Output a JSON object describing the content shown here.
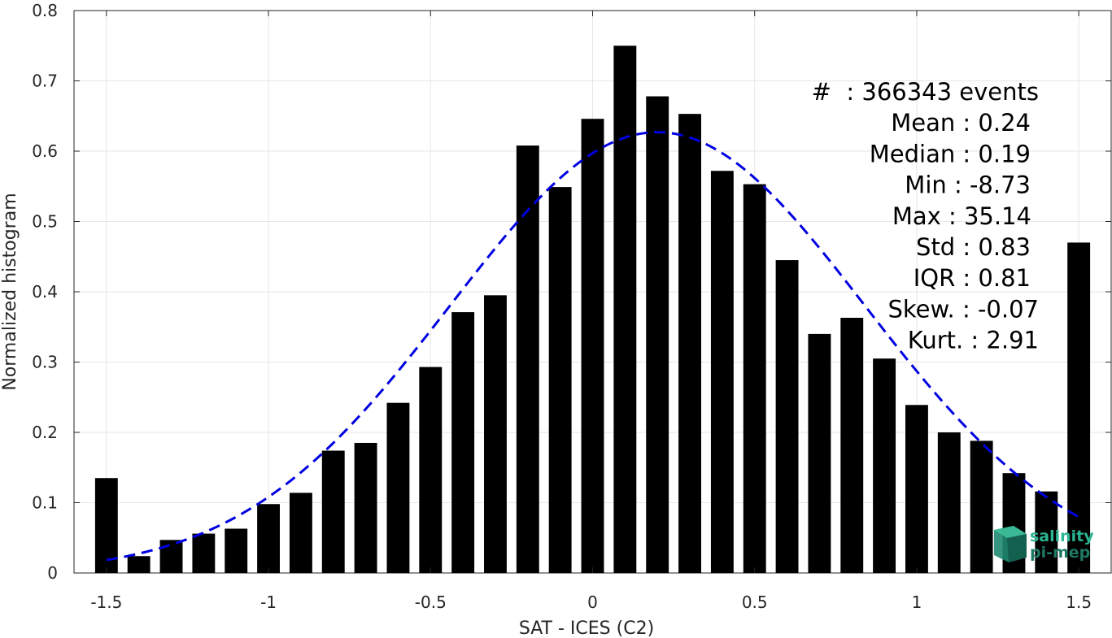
{
  "chart_data": {
    "type": "bar",
    "xlabel": "SAT - ICES (C2)",
    "ylabel": "Normalized histogram",
    "xlim": [
      -1.6,
      1.6
    ],
    "ylim": [
      0,
      0.8
    ],
    "x_ticks": [
      "-1.5",
      "-1",
      "-0.5",
      "0",
      "0.5",
      "1",
      "1.5"
    ],
    "x_tick_values": [
      -1.5,
      -1,
      -0.5,
      0,
      0.5,
      1,
      1.5
    ],
    "y_ticks": [
      "0",
      "0.1",
      "0.2",
      "0.3",
      "0.4",
      "0.5",
      "0.6",
      "0.7",
      "0.8"
    ],
    "y_tick_values": [
      0,
      0.1,
      0.2,
      0.3,
      0.4,
      0.5,
      0.6,
      0.7,
      0.8
    ],
    "grid": true,
    "bar_color": "#000000",
    "fit_color": "#0000e0",
    "bins": [
      {
        "x": -1.5,
        "value": 0.135
      },
      {
        "x": -1.4,
        "value": 0.024
      },
      {
        "x": -1.3,
        "value": 0.047
      },
      {
        "x": -1.2,
        "value": 0.056
      },
      {
        "x": -1.1,
        "value": 0.063
      },
      {
        "x": -1.0,
        "value": 0.098
      },
      {
        "x": -0.9,
        "value": 0.114
      },
      {
        "x": -0.8,
        "value": 0.174
      },
      {
        "x": -0.7,
        "value": 0.185
      },
      {
        "x": -0.6,
        "value": 0.242
      },
      {
        "x": -0.5,
        "value": 0.293
      },
      {
        "x": -0.4,
        "value": 0.371
      },
      {
        "x": -0.3,
        "value": 0.395
      },
      {
        "x": -0.2,
        "value": 0.608
      },
      {
        "x": -0.1,
        "value": 0.549
      },
      {
        "x": 0.0,
        "value": 0.646
      },
      {
        "x": 0.1,
        "value": 0.75
      },
      {
        "x": 0.2,
        "value": 0.678
      },
      {
        "x": 0.3,
        "value": 0.653
      },
      {
        "x": 0.4,
        "value": 0.572
      },
      {
        "x": 0.5,
        "value": 0.553
      },
      {
        "x": 0.6,
        "value": 0.445
      },
      {
        "x": 0.7,
        "value": 0.34
      },
      {
        "x": 0.8,
        "value": 0.363
      },
      {
        "x": 0.9,
        "value": 0.305
      },
      {
        "x": 1.0,
        "value": 0.239
      },
      {
        "x": 1.1,
        "value": 0.2
      },
      {
        "x": 1.2,
        "value": 0.188
      },
      {
        "x": 1.3,
        "value": 0.142
      },
      {
        "x": 1.4,
        "value": 0.116
      },
      {
        "x": 1.5,
        "value": 0.47
      }
    ],
    "bar_width": 0.07,
    "fit": {
      "type": "normal",
      "x_range": [
        -1.5,
        1.5
      ]
    },
    "stats": [
      {
        "label": "#  : 366343 events"
      },
      {
        "label": "Mean : 0.24"
      },
      {
        "label": "Median : 0.19"
      },
      {
        "label": "Min : -8.73"
      },
      {
        "label": "Max : 35.14"
      },
      {
        "label": "Std : 0.83"
      },
      {
        "label": "IQR : 0.81"
      },
      {
        "label": "Skew. : -0.07"
      },
      {
        "label": "Kurt. : 2.91"
      }
    ]
  },
  "logo": {
    "line1": "salinity",
    "line2": "pi-mep"
  }
}
